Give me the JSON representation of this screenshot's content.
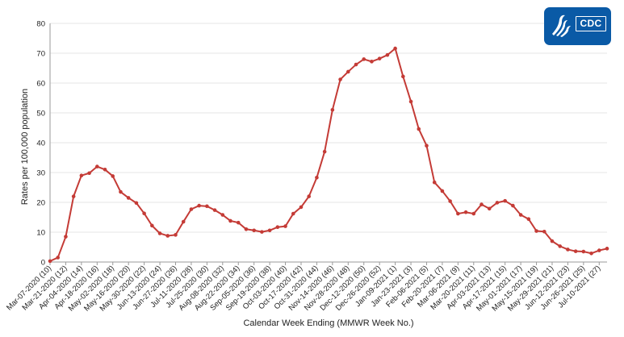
{
  "logo": {
    "text": "CDC",
    "icon": "hhs-eagle-icon",
    "color": "#0a5aa6"
  },
  "chart_data": {
    "type": "line",
    "xlabel": "Calendar Week Ending (MMWR Week No.)",
    "ylabel": "Rates per 100,000 population",
    "ylim": [
      0,
      80
    ],
    "yticks": [
      0,
      10,
      20,
      30,
      40,
      50,
      60,
      70,
      80
    ],
    "grid": true,
    "line_color": "#c43b36",
    "x": [
      "Mar-07-2020 (10)",
      "Mar-14-2020 (11)",
      "Mar-21-2020 (12)",
      "Mar-28-2020 (13)",
      "Apr-04-2020 (14)",
      "Apr-11-2020 (15)",
      "Apr-18-2020 (16)",
      "Apr-25-2020 (17)",
      "May-02-2020 (18)",
      "May-09-2020 (19)",
      "May-16-2020 (20)",
      "May-23-2020 (21)",
      "May-30-2020 (22)",
      "Jun-06-2020 (23)",
      "Jun-13-2020 (24)",
      "Jun-20-2020 (25)",
      "Jun-27-2020 (26)",
      "Jul-04-2020 (27)",
      "Jul-11-2020 (28)",
      "Jul-18-2020 (29)",
      "Jul-25-2020 (30)",
      "Aug-01-2020 (31)",
      "Aug-08-2020 (32)",
      "Aug-15-2020 (33)",
      "Aug-22-2020 (34)",
      "Aug-29-2020 (35)",
      "Sep-05-2020 (36)",
      "Sep-12-2020 (37)",
      "Sep-19-2020 (38)",
      "Sep-26-2020 (39)",
      "Oct-03-2020 (40)",
      "Oct-10-2020 (41)",
      "Oct-17-2020 (42)",
      "Oct-24-2020 (43)",
      "Oct-31-2020 (44)",
      "Nov-07-2020 (45)",
      "Nov-14-2020 (46)",
      "Nov-21-2020 (47)",
      "Nov-28-2020 (48)",
      "Dec-05-2020 (49)",
      "Dec-12-2020 (50)",
      "Dec-19-2020 (51)",
      "Dec-26-2020 (52)",
      "Jan-02-2021 (53)",
      "Jan-09-2021 (1)",
      "Jan-16-2021 (2)",
      "Jan-23-2021 (3)",
      "Jan-30-2021 (4)",
      "Feb-06-2021 (5)",
      "Feb-13-2021 (6)",
      "Feb-20-2021 (7)",
      "Feb-27-2021 (8)",
      "Mar-06-2021 (9)",
      "Mar-13-2021 (10)",
      "Mar-20-2021 (11)",
      "Mar-27-2021 (12)",
      "Apr-03-2021 (13)",
      "Apr-10-2021 (14)",
      "Apr-17-2021 (15)",
      "Apr-24-2021 (16)",
      "May-01-2021 (17)",
      "May-08-2021 (18)",
      "May-15-2021 (19)",
      "May-22-2021 (20)",
      "May-29-2021 (21)",
      "Jun-05-2021 (22)",
      "Jun-12-2021 (23)",
      "Jun-19-2021 (24)",
      "Jun-26-2021 (25)",
      "Jul-03-2021 (26)",
      "Jul-10-2021 (27)",
      "Jul-17-2021 (28)"
    ],
    "tick_labels": [
      "Mar-07-2020 (10)",
      "Mar-21-2020 (12)",
      "Apr-04-2020 (14)",
      "Apr-18-2020 (16)",
      "May-02-2020 (18)",
      "May-16-2020 (20)",
      "May-30-2020 (22)",
      "Jun-13-2020 (24)",
      "Jun-27-2020 (26)",
      "Jul-11-2020 (28)",
      "Jul-25-2020 (30)",
      "Aug-08-2020 (32)",
      "Aug-22-2020 (34)",
      "Sep-05-2020 (36)",
      "Sep-19-2020 (38)",
      "Oct-03-2020 (40)",
      "Oct-17-2020 (42)",
      "Oct-31-2020 (44)",
      "Nov-14-2020 (46)",
      "Nov-28-2020 (48)",
      "Dec-12-2020 (50)",
      "Dec-26-2020 (52)",
      "Jan-09-2021 (1)",
      "Jan-23-2021 (3)",
      "Feb-06-2021 (5)",
      "Feb-20-2021 (7)",
      "Mar-06-2021 (9)",
      "Mar-20-2021 (11)",
      "Apr-03-2021 (13)",
      "Apr-17-2021 (15)",
      "May-01-2021 (17)",
      "May-15-2021 (19)",
      "May-29-2021 (21)",
      "Jun-12-2021 (23)",
      "Jun-26-2021 (25)",
      "Jul-10-2021 (27)"
    ],
    "values": [
      0.3,
      1.5,
      8.5,
      22.0,
      29.0,
      29.8,
      32.0,
      31.0,
      28.8,
      23.5,
      21.5,
      19.8,
      16.3,
      12.2,
      9.6,
      8.8,
      9.1,
      13.5,
      17.7,
      18.9,
      18.7,
      17.4,
      15.8,
      13.8,
      13.2,
      11.0,
      10.6,
      10.1,
      10.6,
      11.7,
      12.0,
      16.2,
      18.4,
      22.0,
      28.3,
      37.0,
      51.0,
      61.2,
      63.8,
      66.2,
      68.0,
      67.2,
      68.2,
      69.4,
      71.6,
      62.2,
      53.8,
      44.6,
      39.0,
      26.7,
      23.8,
      20.4,
      16.2,
      16.7,
      16.2,
      19.3,
      17.9,
      19.9,
      20.5,
      18.9,
      15.8,
      14.4,
      10.4,
      10.2,
      7.0,
      5.3,
      4.2,
      3.6,
      3.5,
      2.9,
      3.9,
      4.5
    ]
  }
}
